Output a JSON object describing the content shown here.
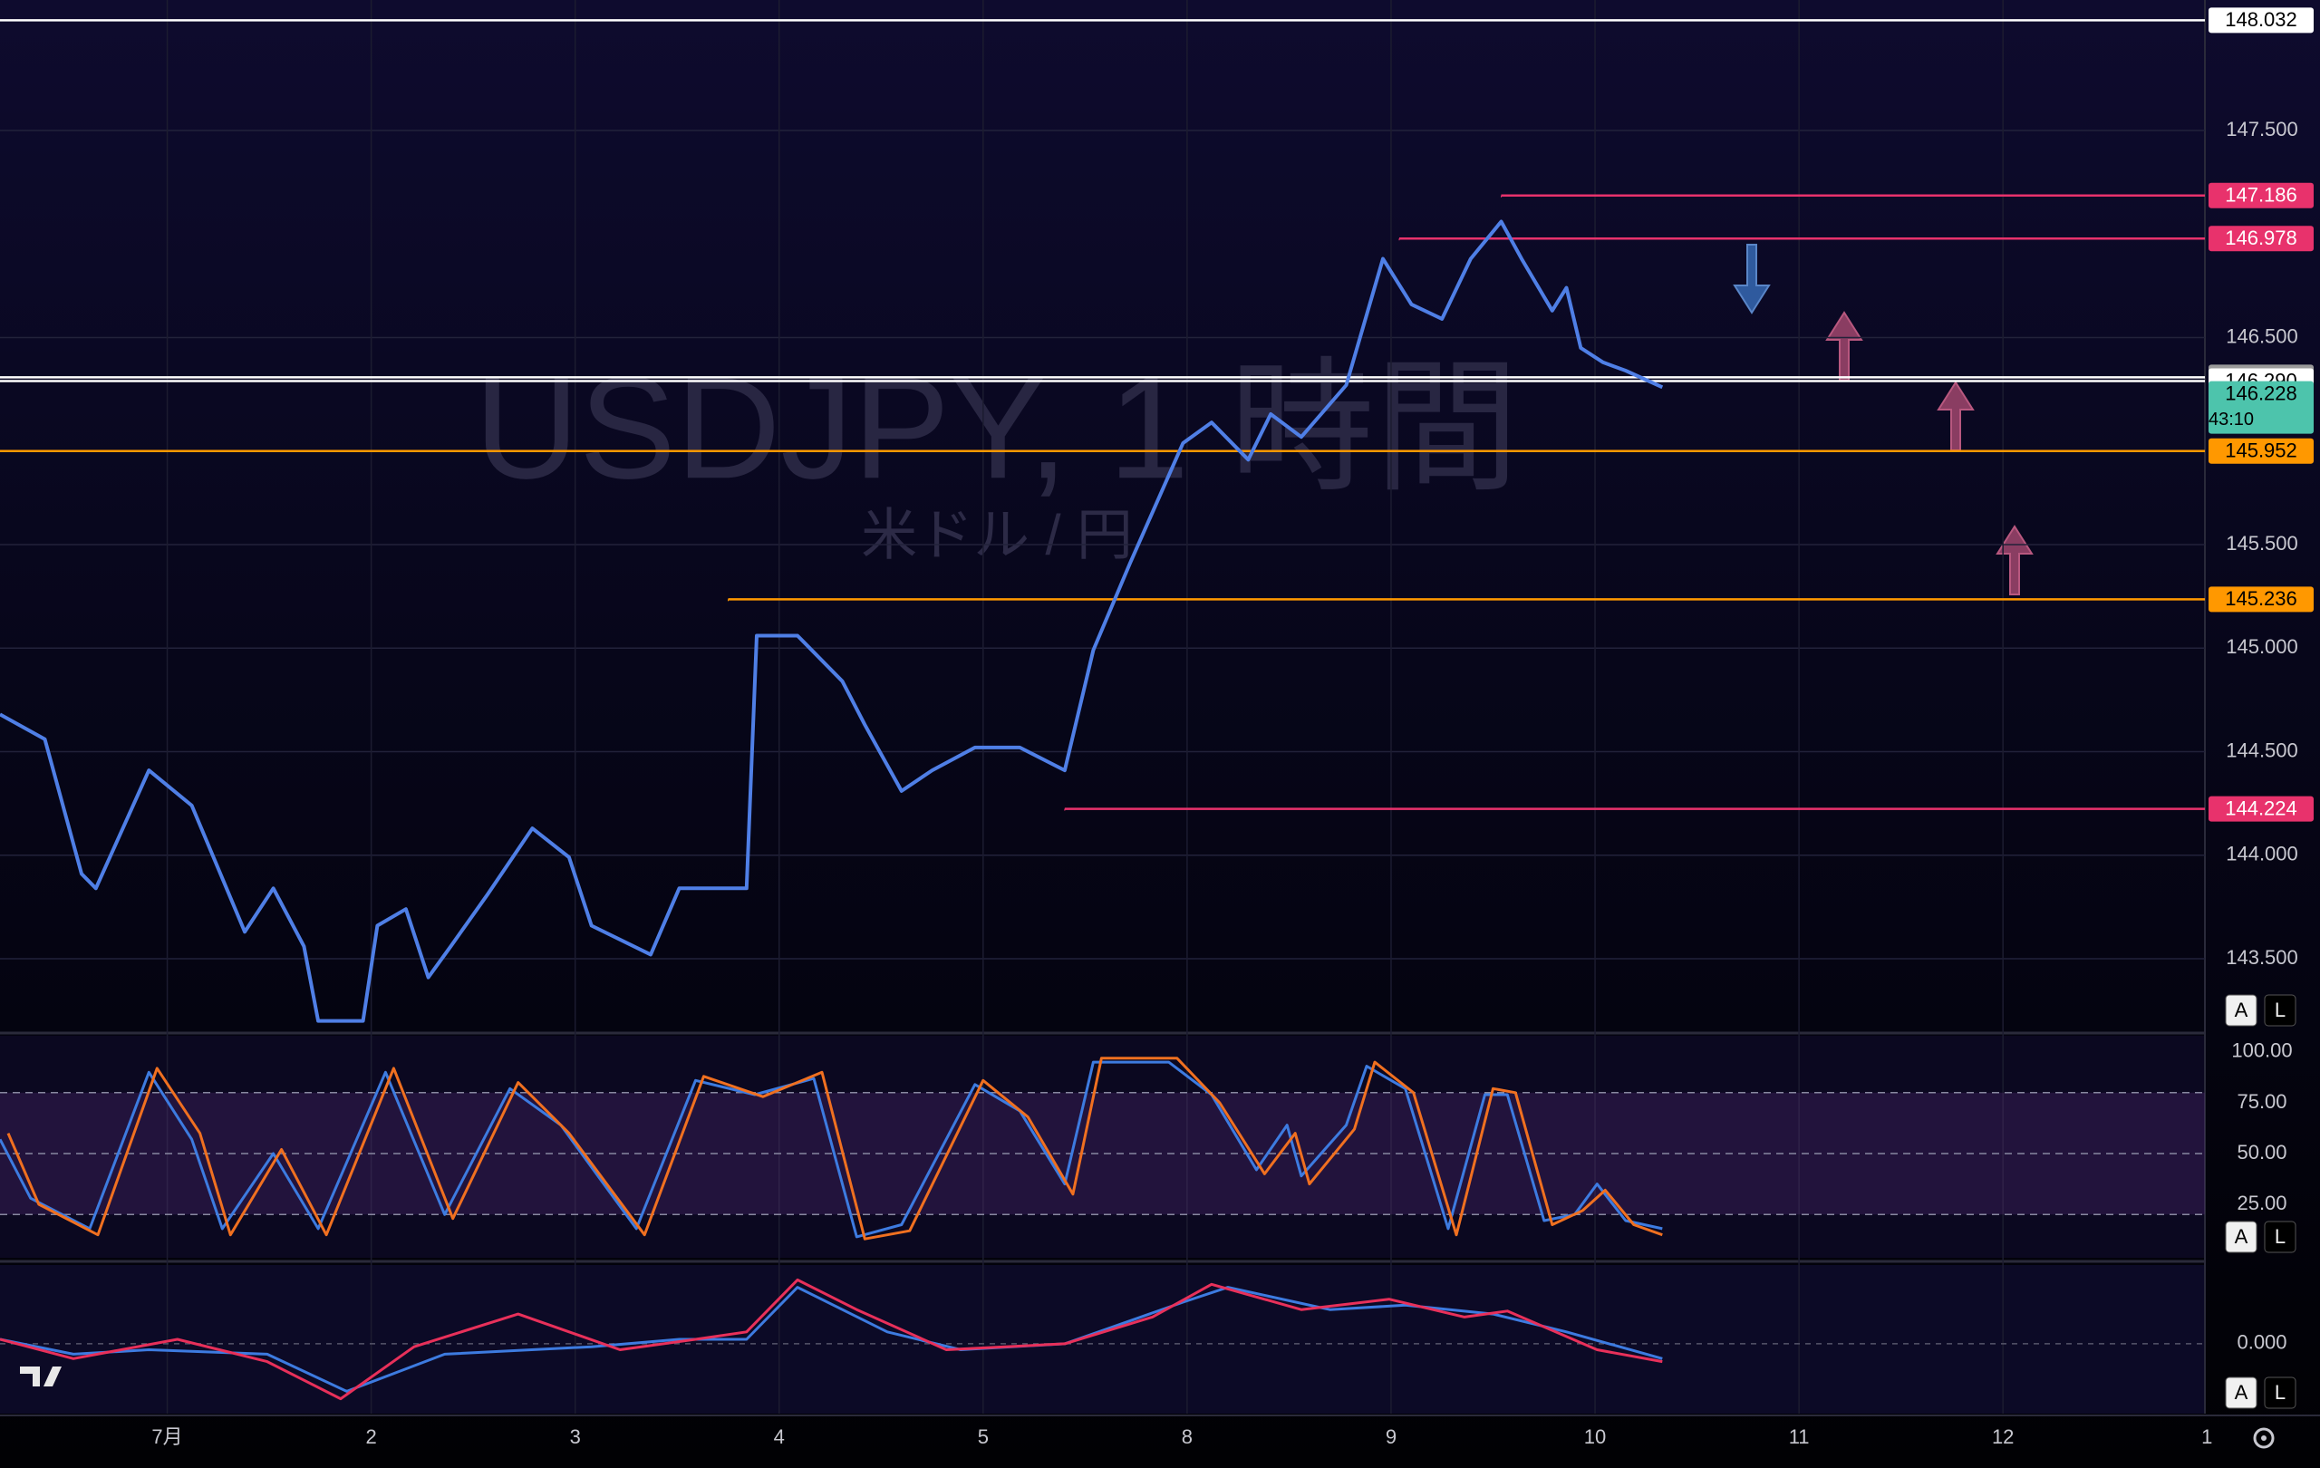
{
  "chart_data": [
    {
      "type": "line",
      "watermark": "USDJPY, 1 時間",
      "watermark_sub": "米ドル / 円",
      "xlim": [
        -0.82,
        9.99
      ],
      "xticks": [
        {
          "value": 0,
          "label": "7月"
        },
        {
          "value": 1,
          "label": "2"
        },
        {
          "value": 2,
          "label": "3"
        },
        {
          "value": 3,
          "label": "4"
        },
        {
          "value": 4,
          "label": "5"
        },
        {
          "value": 5,
          "label": "8"
        },
        {
          "value": 6,
          "label": "9"
        },
        {
          "value": 7,
          "label": "10"
        },
        {
          "value": 8,
          "label": "11"
        },
        {
          "value": 9,
          "label": "12"
        },
        {
          "value": 10,
          "label": "1"
        }
      ],
      "ylim": [
        143.15,
        148.13
      ],
      "yticks": [
        {
          "value": 143.5,
          "label": "143.500"
        },
        {
          "value": 144,
          "label": "144.000"
        },
        {
          "value": 144.5,
          "label": "144.500"
        },
        {
          "value": 145,
          "label": "145.000"
        },
        {
          "value": 145.5,
          "label": "145.500"
        },
        {
          "value": 146.5,
          "label": "146.500"
        },
        {
          "value": 147.5,
          "label": "147.500"
        }
      ],
      "grid": true,
      "buttons": [
        "A",
        "L"
      ],
      "series": [
        {
          "color": "#4f7fe6",
          "x": [
            -0.82,
            -0.6,
            -0.42,
            -0.35,
            -0.09,
            0.12,
            0.38,
            0.52,
            0.67,
            0.74,
            0.96,
            1.03,
            1.17,
            1.28,
            1.39,
            1.57,
            1.79,
            1.97,
            2.08,
            2.37,
            2.51,
            2.84,
            2.89,
            3.09,
            3.31,
            3.42,
            3.6,
            3.75,
            3.96,
            4.18,
            4.4,
            4.54,
            4.72,
            4.98,
            5.12,
            5.3,
            5.41,
            5.56,
            5.78,
            5.96,
            6.1,
            6.25,
            6.39,
            6.54,
            6.64,
            6.79,
            6.86,
            6.93,
            7.04,
            7.15,
            7.33
          ],
          "values": [
            144.68,
            144.56,
            143.91,
            143.84,
            144.41,
            144.24,
            143.63,
            143.84,
            143.56,
            143.2,
            143.2,
            143.66,
            143.74,
            143.41,
            143.56,
            143.81,
            144.13,
            143.99,
            143.66,
            143.52,
            143.84,
            143.84,
            145.06,
            145.06,
            144.84,
            144.63,
            144.31,
            144.41,
            144.52,
            144.52,
            144.41,
            144.99,
            145.41,
            145.99,
            146.09,
            145.91,
            146.13,
            146.02,
            146.27,
            146.88,
            146.66,
            146.59,
            146.88,
            147.06,
            146.88,
            146.63,
            146.74,
            146.45,
            146.38,
            146.34,
            146.26
          ]
        }
      ],
      "price_lines": [
        {
          "value": 148.032,
          "color": "#ffffff",
          "text_color": "#000000"
        },
        {
          "value": 147.186,
          "color": "#e8326c",
          "text_color": "#ffffff",
          "from": 6.54
        },
        {
          "value": 146.978,
          "color": "#e8326c",
          "text_color": "#ffffff",
          "from": 6.04
        },
        {
          "value": 146.308,
          "color": "#ffffff",
          "text_color": "#000000",
          "box": "#9a9a9a"
        },
        {
          "value": 146.29,
          "label": "146.290",
          "color": "#ffffff",
          "text_color": "#000000"
        },
        {
          "value": 146.228,
          "color": "#4dc4ac",
          "text_color": "#000000",
          "countdown": "43:10",
          "line": false
        },
        {
          "value": 145.952,
          "color": "#ff9800",
          "text_color": "#000000"
        },
        {
          "value": 145.236,
          "color": "#ff9800",
          "text_color": "#000000",
          "from": 2.75
        },
        {
          "value": 144.224,
          "color": "#e8326c",
          "text_color": "#ffffff",
          "from": 4.4
        }
      ]
    },
    {
      "type": "line",
      "xlim": [
        -0.82,
        9.99
      ],
      "ylim": [
        -1.3,
        108
      ],
      "yticks": [
        {
          "value": 25,
          "label": "25.00"
        },
        {
          "value": 50,
          "label": "50.00"
        },
        {
          "value": 75,
          "label": "75.00"
        },
        {
          "value": 100,
          "label": "100.00"
        }
      ],
      "band": [
        20,
        80
      ],
      "dashed": [
        20,
        50,
        80
      ],
      "buttons": [
        "A",
        "L"
      ],
      "series": [
        {
          "color": "#3d7be0",
          "x": [
            -0.82,
            -0.67,
            -0.38,
            -0.09,
            0.12,
            0.27,
            0.52,
            0.74,
            1.07,
            1.36,
            1.68,
            1.93,
            2.3,
            2.59,
            2.88,
            3.17,
            3.38,
            3.6,
            3.96,
            4.18,
            4.4,
            4.54,
            4.91,
            5.12,
            5.34,
            5.49,
            5.56,
            5.78,
            5.88,
            6.07,
            6.28,
            6.46,
            6.57,
            6.75,
            6.9,
            7.01,
            7.15,
            7.33
          ],
          "values": [
            57,
            28,
            13,
            90,
            57,
            13,
            50,
            13,
            90,
            20,
            82,
            64,
            13,
            86,
            79,
            87,
            9,
            15,
            84,
            71,
            35,
            95,
            95,
            79,
            42,
            64,
            39,
            64,
            93,
            82,
            13,
            79,
            79,
            17,
            20,
            35,
            17,
            13
          ]
        },
        {
          "color": "#f07020",
          "x": [
            -0.78,
            -0.63,
            -0.34,
            -0.05,
            0.16,
            0.31,
            0.56,
            0.78,
            1.11,
            1.4,
            1.72,
            1.97,
            2.34,
            2.63,
            2.92,
            3.21,
            3.42,
            3.64,
            4.0,
            4.22,
            4.44,
            4.58,
            4.95,
            5.16,
            5.38,
            5.53,
            5.6,
            5.82,
            5.92,
            6.11,
            6.32,
            6.5,
            6.61,
            6.79,
            6.94,
            7.05,
            7.19,
            7.33
          ],
          "values": [
            60,
            25,
            10,
            92,
            60,
            10,
            52,
            10,
            92,
            18,
            85,
            60,
            10,
            88,
            78,
            90,
            8,
            12,
            86,
            68,
            30,
            97,
            97,
            75,
            40,
            60,
            35,
            62,
            95,
            80,
            10,
            82,
            80,
            15,
            22,
            32,
            15,
            10
          ]
        }
      ]
    },
    {
      "type": "line",
      "xlim": [
        -0.82,
        9.99
      ],
      "ylim": [
        -0.47,
        0.53
      ],
      "yticks": [
        {
          "value": 0,
          "label": "0.000"
        }
      ],
      "buttons": [
        "A",
        "L"
      ],
      "series": [
        {
          "color": "#3d7be0",
          "x": [
            -0.82,
            -0.46,
            -0.09,
            0.49,
            0.88,
            1.36,
            2.08,
            2.51,
            2.84,
            3.09,
            3.53,
            3.89,
            4.4,
            4.98,
            5.2,
            5.7,
            6.07,
            6.5,
            6.86,
            7.33
          ],
          "values": [
            0.03,
            -0.07,
            -0.04,
            -0.07,
            -0.32,
            -0.07,
            -0.02,
            0.03,
            0.03,
            0.38,
            0.08,
            -0.04,
            0,
            0.28,
            0.38,
            0.23,
            0.26,
            0.2,
            0.08,
            -0.1
          ]
        },
        {
          "color": "#e8305a",
          "x": [
            -0.82,
            -0.46,
            0.05,
            0.49,
            0.85,
            1.21,
            1.72,
            2.22,
            2.59,
            2.84,
            3.09,
            3.38,
            3.82,
            4.4,
            4.83,
            5.12,
            5.56,
            5.99,
            6.36,
            6.57,
            7.01,
            7.33
          ],
          "values": [
            0.03,
            -0.1,
            0.03,
            -0.12,
            -0.37,
            -0.02,
            0.2,
            -0.04,
            0.03,
            0.08,
            0.43,
            0.23,
            -0.04,
            0,
            0.18,
            0.4,
            0.23,
            0.3,
            0.18,
            0.22,
            -0.04,
            -0.12
          ]
        }
      ]
    }
  ]
}
